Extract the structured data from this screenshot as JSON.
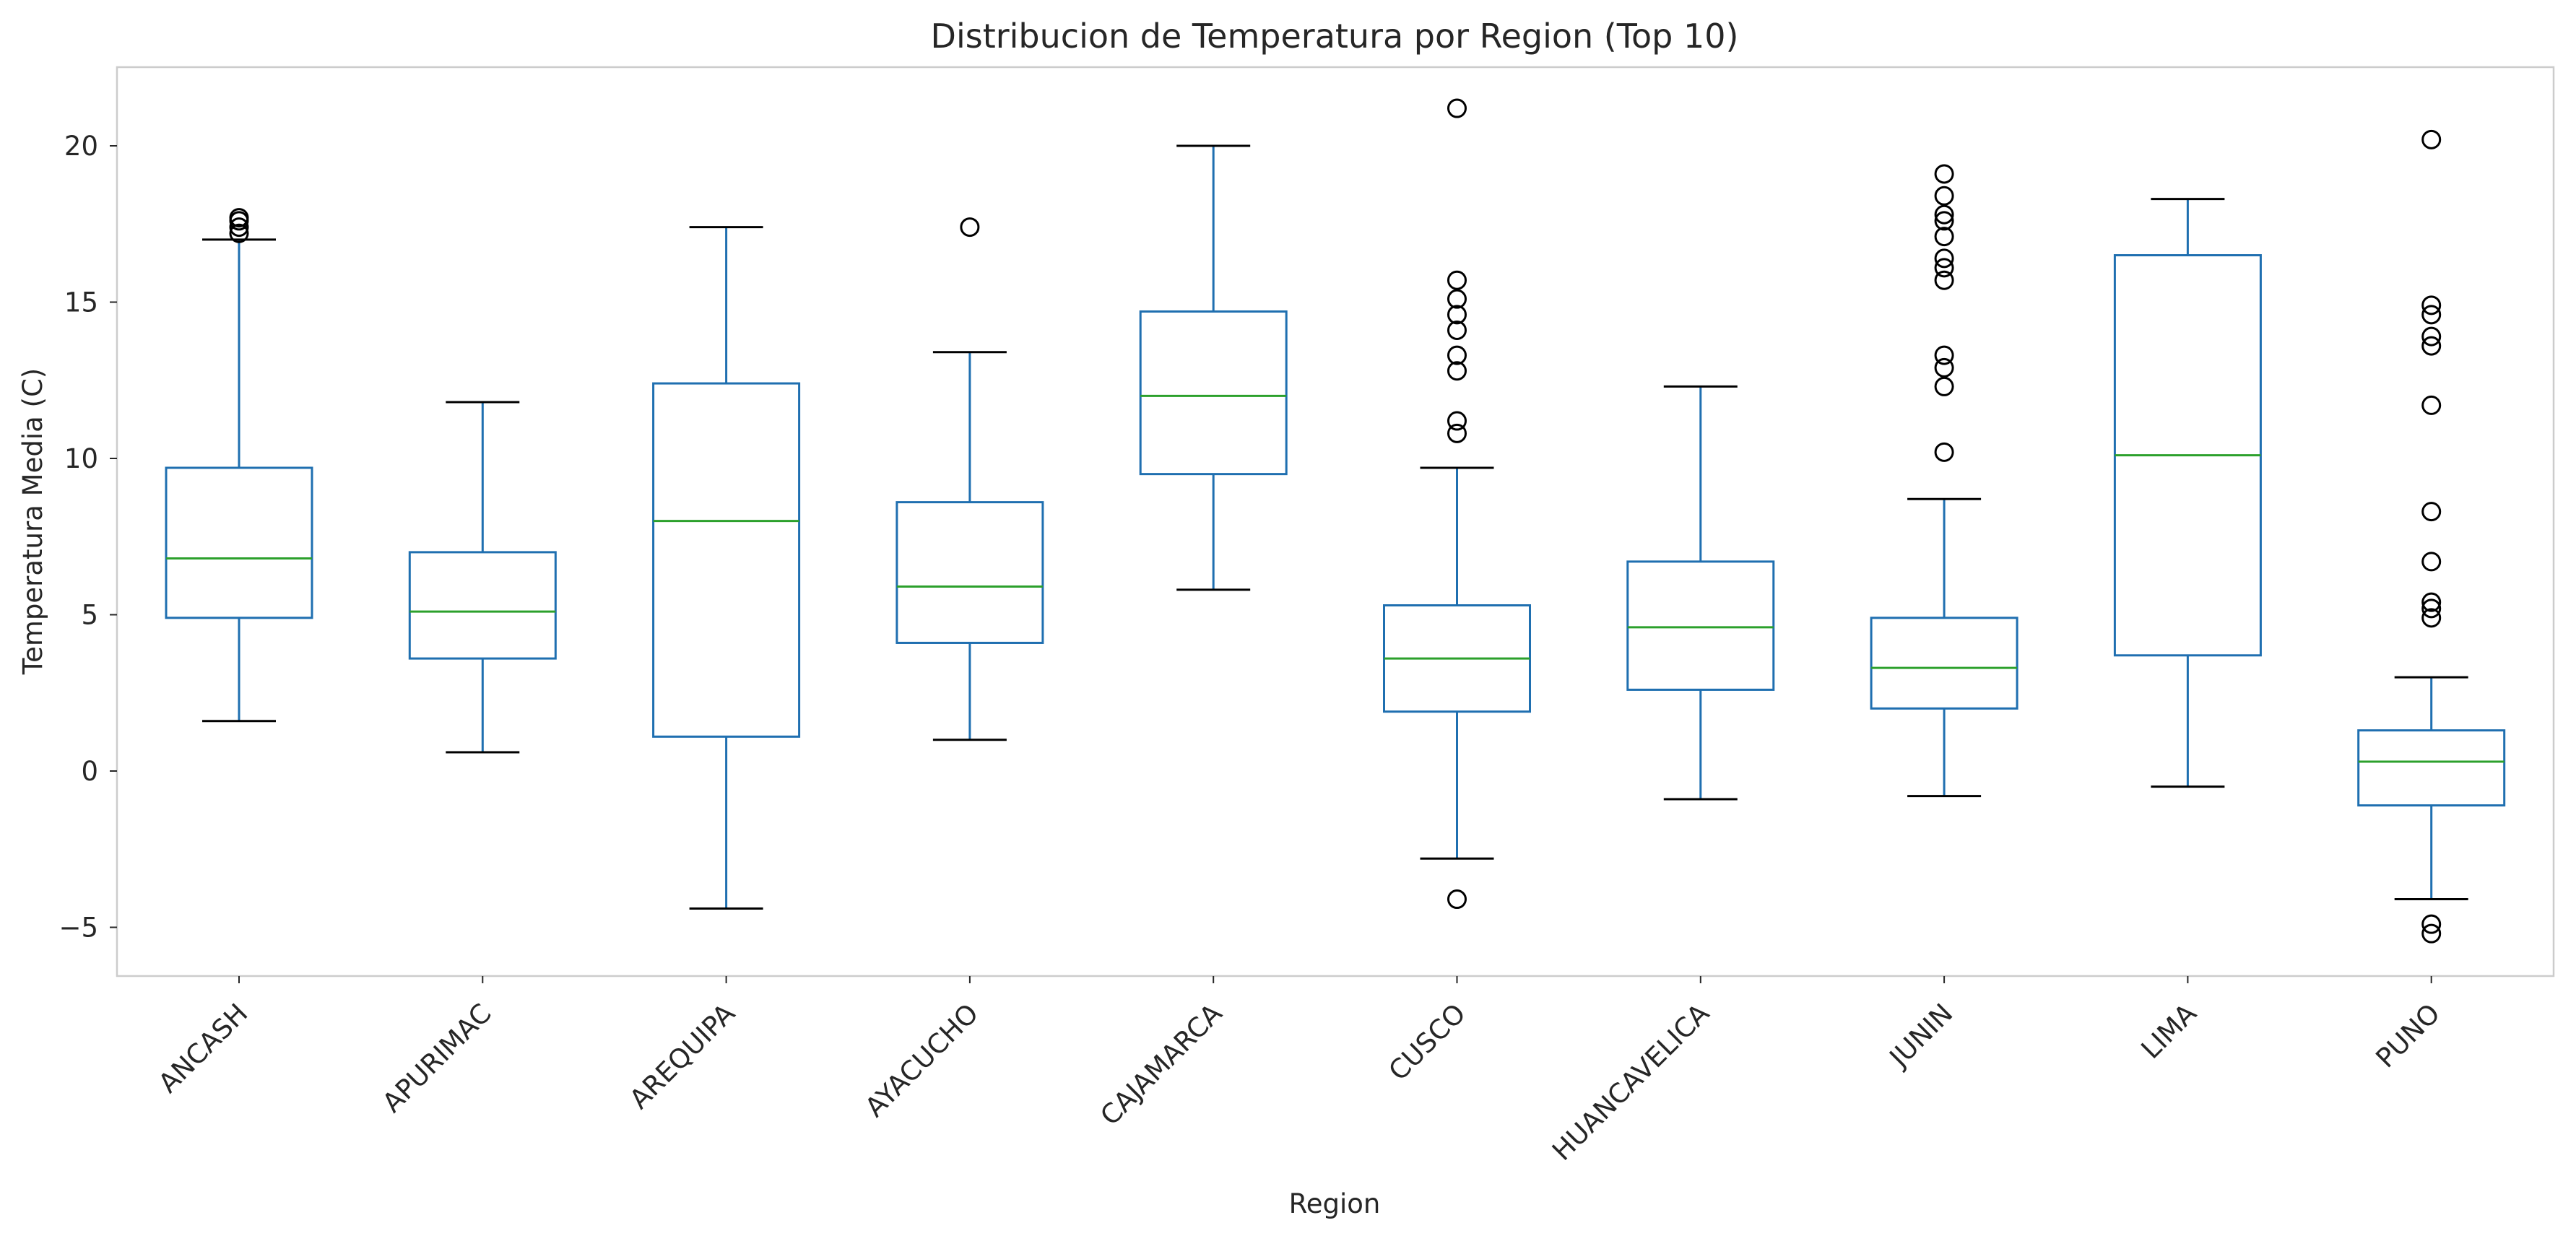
{
  "chart_data": {
    "type": "box",
    "title": "Distribucion de Temperatura por Region (Top 10)",
    "xlabel": "Region",
    "ylabel": "Temperatura Media (C)",
    "ylim": [
      -6.5,
      22.5
    ],
    "yticks": [
      -5,
      0,
      5,
      10,
      15,
      20
    ],
    "grid": false,
    "colors": {
      "box": "#1f6fb0",
      "median": "#2ca02c",
      "cap": "#000000",
      "frame": "#cccccc",
      "text": "#262626"
    },
    "categories": [
      "ANCASH",
      "APURIMAC",
      "AREQUIPA",
      "AYACUCHO",
      "CAJAMARCA",
      "CUSCO",
      "HUANCAVELICA",
      "JUNIN",
      "LIMA",
      "PUNO"
    ],
    "boxes": [
      {
        "name": "ANCASH",
        "whislo": 1.6,
        "q1": 4.9,
        "med": 6.8,
        "q3": 9.7,
        "whishi": 17.0,
        "fliers": [
          17.2,
          17.4,
          17.6,
          17.7
        ]
      },
      {
        "name": "APURIMAC",
        "whislo": 0.6,
        "q1": 3.6,
        "med": 5.1,
        "q3": 7.0,
        "whishi": 11.8,
        "fliers": []
      },
      {
        "name": "AREQUIPA",
        "whislo": -4.4,
        "q1": 1.1,
        "med": 8.0,
        "q3": 12.4,
        "whishi": 17.4,
        "fliers": []
      },
      {
        "name": "AYACUCHO",
        "whislo": 1.0,
        "q1": 4.1,
        "med": 5.9,
        "q3": 8.6,
        "whishi": 13.4,
        "fliers": [
          17.4
        ]
      },
      {
        "name": "CAJAMARCA",
        "whislo": 5.8,
        "q1": 9.5,
        "med": 12.0,
        "q3": 14.7,
        "whishi": 20.0,
        "fliers": []
      },
      {
        "name": "CUSCO",
        "whislo": -2.8,
        "q1": 1.9,
        "med": 3.6,
        "q3": 5.3,
        "whishi": 9.7,
        "fliers": [
          -4.1,
          10.8,
          11.2,
          12.8,
          13.3,
          14.1,
          14.6,
          15.1,
          15.7,
          21.2
        ]
      },
      {
        "name": "HUANCAVELICA",
        "whislo": -0.9,
        "q1": 2.6,
        "med": 4.6,
        "q3": 6.7,
        "whishi": 12.3,
        "fliers": []
      },
      {
        "name": "JUNIN",
        "whislo": -0.8,
        "q1": 2.0,
        "med": 3.3,
        "q3": 4.9,
        "whishi": 8.7,
        "fliers": [
          10.2,
          12.3,
          12.9,
          13.3,
          15.7,
          16.1,
          16.4,
          17.1,
          17.6,
          17.8,
          18.4,
          19.1
        ]
      },
      {
        "name": "LIMA",
        "whislo": -0.5,
        "q1": 3.7,
        "med": 10.1,
        "q3": 16.5,
        "whishi": 18.3,
        "fliers": []
      },
      {
        "name": "PUNO",
        "whislo": -4.1,
        "q1": -1.1,
        "med": 0.3,
        "q3": 1.3,
        "whishi": 3.0,
        "fliers": [
          -5.2,
          -4.9,
          4.9,
          5.2,
          5.4,
          6.7,
          8.3,
          11.7,
          13.6,
          13.9,
          14.6,
          14.9,
          20.2
        ]
      }
    ]
  }
}
